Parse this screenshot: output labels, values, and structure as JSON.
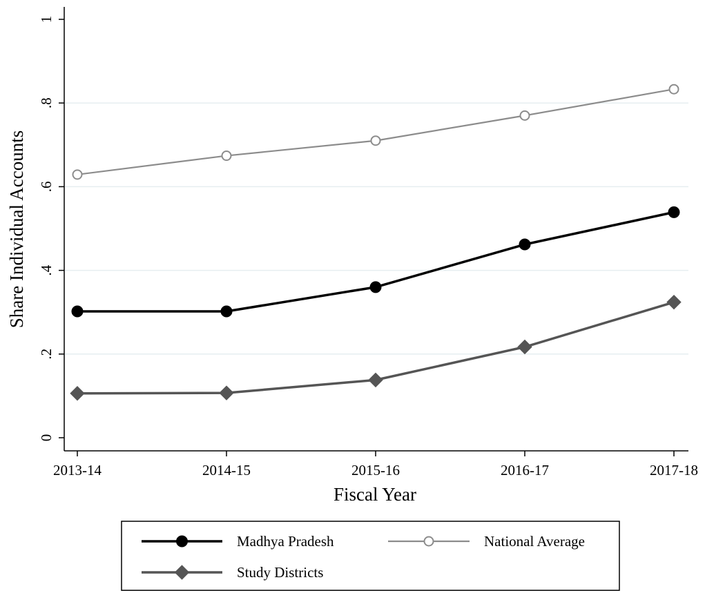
{
  "chart_data": {
    "type": "line",
    "xlabel": "Fiscal Year",
    "ylabel": "Share Individual Accounts",
    "categories": [
      "2013-14",
      "2014-15",
      "2015-16",
      "2016-17",
      "2017-18"
    ],
    "ylim": [
      0,
      1
    ],
    "yticks": [
      0,
      0.2,
      0.4,
      0.6,
      0.8,
      1
    ],
    "ytick_labels": [
      "0",
      ".2",
      ".4",
      ".6",
      ".8",
      "1"
    ],
    "grid": true,
    "legend_position": "bottom",
    "series": [
      {
        "name": "Madhya Pradesh",
        "values": [
          0.302,
          0.302,
          0.36,
          0.462,
          0.539
        ],
        "color": "#000000",
        "marker": "filled-circle"
      },
      {
        "name": "National Average",
        "values": [
          0.629,
          0.674,
          0.71,
          0.77,
          0.833
        ],
        "color": "#8c8c8c",
        "marker": "hollow-circle"
      },
      {
        "name": "Study Districts",
        "values": [
          0.106,
          0.107,
          0.138,
          0.217,
          0.324
        ],
        "color": "#555555",
        "marker": "diamond"
      }
    ]
  }
}
